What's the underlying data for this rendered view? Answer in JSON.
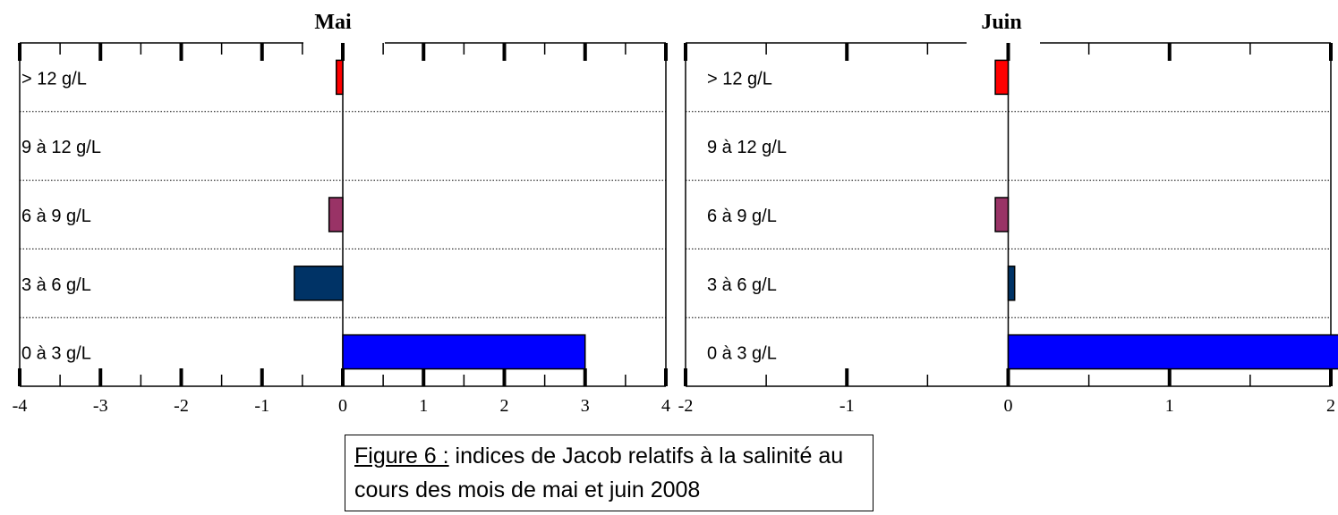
{
  "charts": [
    {
      "title": "Mai",
      "categories": [
        "> 12 g/L",
        "9 à 12 g/L",
        "6 à 9 g/L",
        "3 à 6 g/L",
        "0 à 3 g/L"
      ],
      "values": [
        -0.08,
        0,
        -0.17,
        -0.6,
        3.0
      ],
      "colors": [
        "#ff0000",
        "#ffffff",
        "#993366",
        "#003366",
        "#0000ff"
      ],
      "xlim": [
        -4,
        4
      ],
      "ticks": [
        "-4",
        "-3",
        "-2",
        "-1",
        "0",
        "1",
        "2",
        "3",
        "4"
      ]
    },
    {
      "title": "Juin",
      "categories": [
        "> 12 g/L",
        "9 à 12 g/L",
        "6 à 9 g/L",
        "3 à 6 g/L",
        "0 à 3 g/L"
      ],
      "values": [
        -0.08,
        0,
        -0.08,
        0.04,
        2.15
      ],
      "colors": [
        "#ff0000",
        "#ffffff",
        "#993366",
        "#003366",
        "#0000ff"
      ],
      "xlim": [
        -2,
        2
      ],
      "ticks": [
        "-2",
        "-1",
        "0",
        "1",
        "2"
      ]
    }
  ],
  "chart_data": [
    {
      "type": "bar",
      "orientation": "horizontal",
      "title": "Mai",
      "categories": [
        "> 12 g/L",
        "9 à 12 g/L",
        "6 à 9 g/L",
        "3 à 6 g/L",
        "0 à 3 g/L"
      ],
      "values": [
        -0.08,
        0,
        -0.17,
        -0.6,
        3.0
      ],
      "xlim": [
        -4,
        4
      ],
      "grid": "horizontal dotted separators"
    },
    {
      "type": "bar",
      "orientation": "horizontal",
      "title": "Juin",
      "categories": [
        "> 12 g/L",
        "9 à 12 g/L",
        "6 à 9 g/L",
        "3 à 6 g/L",
        "0 à 3 g/L"
      ],
      "values": [
        -0.08,
        0,
        -0.08,
        0.04,
        2.15
      ],
      "xlim": [
        -2,
        2
      ],
      "grid": "horizontal dotted separators"
    }
  ],
  "caption": {
    "figure_label": "Figure 6 :",
    "line1_rest": " indices de Jacob relatifs à la salinité au",
    "line2": "cours des mois de mai et juin 2008"
  }
}
